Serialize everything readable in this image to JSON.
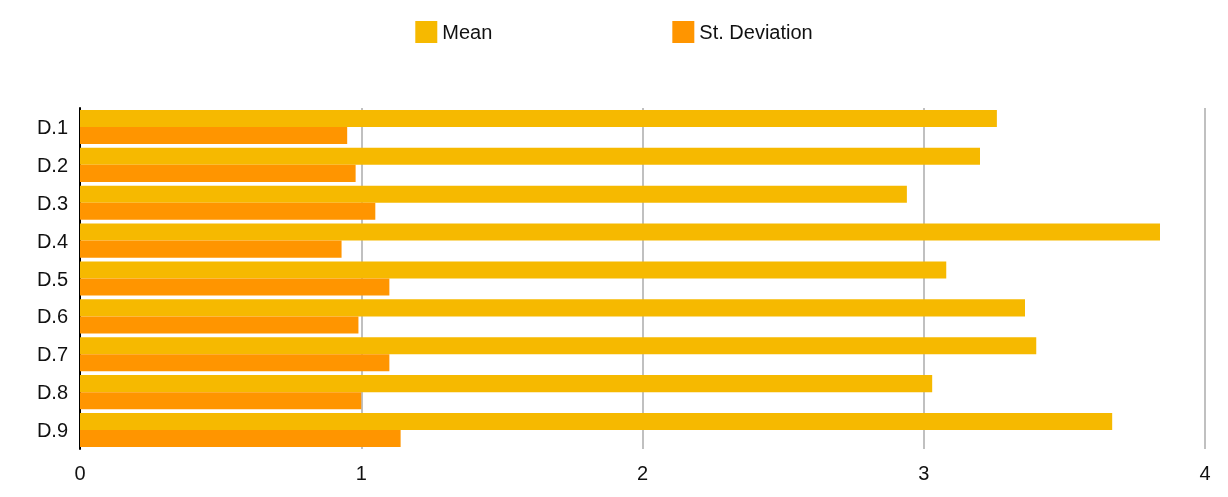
{
  "chart_data": {
    "type": "bar",
    "orientation": "horizontal",
    "categories": [
      "D.1",
      "D.2",
      "D.3",
      "D.4",
      "D.5",
      "D.6",
      "D.7",
      "D.8",
      "D.9"
    ],
    "series": [
      {
        "name": "Mean",
        "color": "#f6b900",
        "values": [
          3.26,
          3.2,
          2.94,
          3.84,
          3.08,
          3.36,
          3.4,
          3.03,
          3.67
        ]
      },
      {
        "name": "St. Deviation",
        "color": "#ff9500",
        "values": [
          0.95,
          0.98,
          1.05,
          0.93,
          1.1,
          0.99,
          1.1,
          1.0,
          1.14
        ]
      }
    ],
    "xlim": [
      0,
      4
    ],
    "xticks": [
      0,
      1,
      2,
      3,
      4
    ],
    "grid": "x",
    "legend": "top"
  }
}
